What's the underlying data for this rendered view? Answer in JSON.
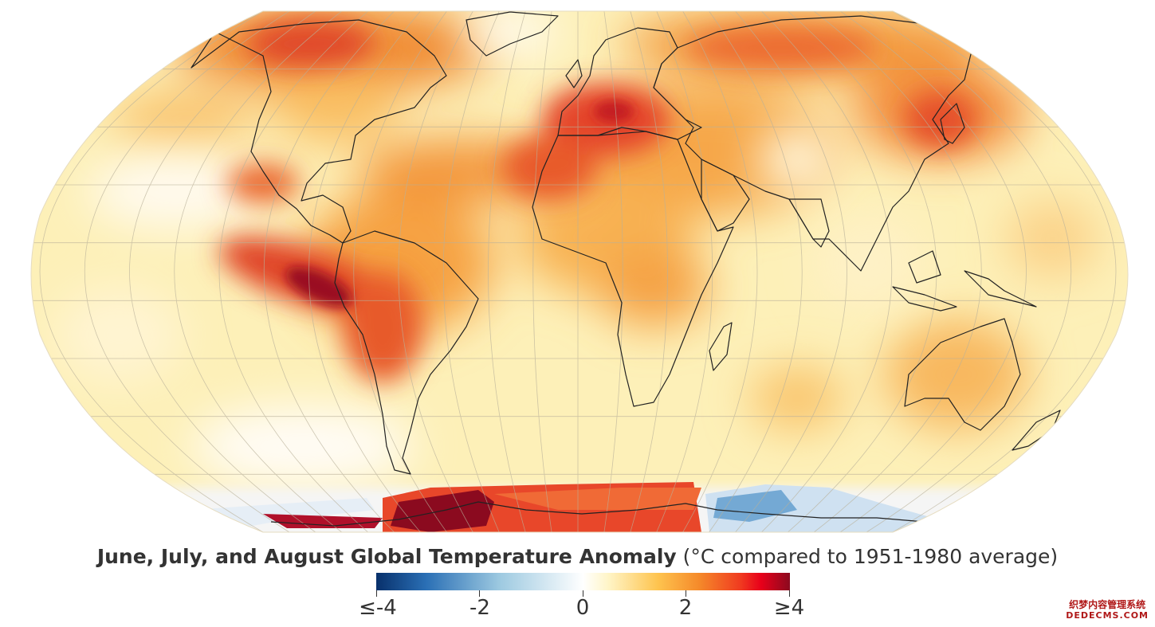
{
  "title": {
    "bold": "June, July, and August Global Temperature Anomaly",
    "normal": "(°C compared to 1951-1980 average)"
  },
  "legend": {
    "ticks": [
      "≤-4",
      "-2",
      "0",
      "2",
      "≥4"
    ],
    "colors": [
      "#08306b",
      "#2a6fb5",
      "#9ecae1",
      "#ffffff",
      "#fff5c8",
      "#fec44f",
      "#f58a2a",
      "#f03b20",
      "#e8001a",
      "#8b0a1f"
    ]
  },
  "watermark": {
    "line1": "织梦内容管理系统",
    "line2": "DEDECMS.COM"
  },
  "colors": {
    "ocean_base": "#fdf0b8",
    "warm": "#f7a546",
    "hot": "#e8462a",
    "extreme": "#8b0a1f",
    "cold": "#6fa8d6",
    "coastline": "#222222",
    "graticule": "#b9b19a"
  }
}
